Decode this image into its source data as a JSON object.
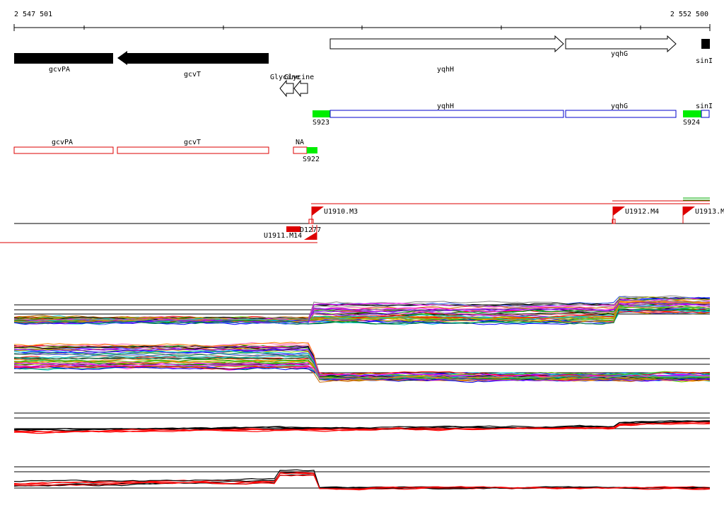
{
  "ruler": {
    "start_label": "2 547 501",
    "end_label": "2 552 500"
  },
  "genes_track": {
    "genes": [
      {
        "name": "gcvPA",
        "strand": "-",
        "style": "filled"
      },
      {
        "name": "gcvT",
        "strand": "-",
        "style": "filled"
      },
      {
        "name": "yqhH",
        "strand": "+",
        "style": "open"
      },
      {
        "name": "yqhG",
        "strand": "+",
        "style": "open"
      },
      {
        "name": "sinI",
        "strand": "+",
        "style": "filled"
      }
    ],
    "riboswitch_labels": [
      "Glycine",
      "Glycine"
    ]
  },
  "segments_top": {
    "boxes": [
      {
        "label": "yqhH",
        "color": "#0000cc"
      },
      {
        "label": "yqhG",
        "color": "#0000cc"
      },
      {
        "label": "sinI",
        "color": "#0000cc"
      }
    ],
    "marks": [
      {
        "label": "S923",
        "color": "#00ee00"
      },
      {
        "label": "S924",
        "color": "#00ee00"
      }
    ]
  },
  "segments_bottom": {
    "boxes": [
      {
        "label": "gcvPA",
        "color": "#dd0000"
      },
      {
        "label": "gcvT",
        "color": "#dd0000"
      },
      {
        "label": "NA",
        "color": "#dd0000"
      }
    ],
    "marks": [
      {
        "label": "S922",
        "color": "#00ee00"
      }
    ]
  },
  "transcription_units": {
    "forward": [
      {
        "label": "U1910.M3"
      },
      {
        "label": "U1912.M4"
      },
      {
        "label": "U1913.M"
      }
    ],
    "reverse": [
      {
        "label": "U1911.M14"
      },
      {
        "label": "D1277"
      }
    ],
    "colors": {
      "line": "#dd0000",
      "baseline": "#000000",
      "green": "#00aa00"
    }
  },
  "expression_panels": {
    "panel_colors": [
      "#ff0000",
      "#00aa00",
      "#0000ff",
      "#ff00ff",
      "#00cccc",
      "#aaaa00",
      "#ff8800",
      "#8800ff",
      "#008844",
      "#888888",
      "#ff66aa",
      "#4466ff",
      "#66cc00",
      "#cc6600",
      "#000000"
    ],
    "profile_colors": {
      "primary": "#000000",
      "secondary": "#ff0000"
    }
  }
}
